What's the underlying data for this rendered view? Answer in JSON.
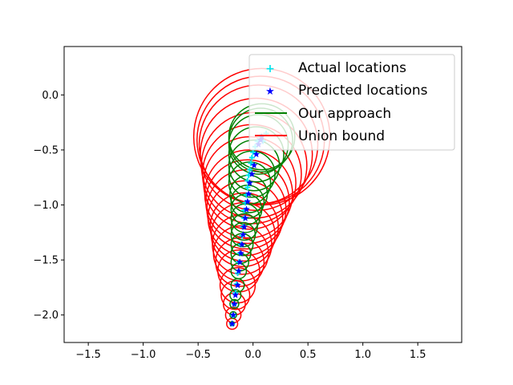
{
  "chart_data": {
    "type": "scatter",
    "title": "",
    "xlabel": "",
    "ylabel": "",
    "xlim": [
      -1.72,
      1.9
    ],
    "ylim": [
      -2.25,
      0.44
    ],
    "xticks": [
      -1.5,
      -1.0,
      -0.5,
      0.0,
      0.5,
      1.0,
      1.5
    ],
    "xtick_labels": [
      "−1.5",
      "−1.0",
      "−0.5",
      "0.0",
      "0.5",
      "1.0",
      "1.5"
    ],
    "yticks": [
      0.0,
      -0.5,
      -1.0,
      -1.5,
      -2.0
    ],
    "ytick_labels": [
      "0.0",
      "−0.5",
      "−1.0",
      "−1.5",
      "−2.0"
    ],
    "grid": false,
    "legend_position": "top-right",
    "series": [
      {
        "name": "Actual locations",
        "marker": "plus",
        "color": "#00e5ee",
        "x": [
          -0.19,
          -0.18,
          -0.17,
          -0.16,
          -0.15,
          -0.14,
          -0.13,
          -0.12,
          -0.11,
          -0.1,
          -0.09,
          -0.08,
          -0.08,
          -0.07,
          -0.06,
          -0.05,
          -0.05,
          -0.04,
          -0.03,
          -0.02,
          -0.01,
          0.0,
          0.02,
          0.04,
          0.07,
          0.09,
          0.12
        ],
        "y": [
          -2.08,
          -2.0,
          -1.9,
          -1.8,
          -1.72,
          -1.62,
          -1.52,
          -1.44,
          -1.36,
          -1.28,
          -1.2,
          -1.12,
          -1.05,
          -0.98,
          -0.91,
          -0.84,
          -0.78,
          -0.73,
          -0.68,
          -0.62,
          -0.57,
          -0.52,
          -0.47,
          -0.42,
          -0.38,
          -0.42,
          -0.35
        ]
      },
      {
        "name": "Predicted locations",
        "marker": "star",
        "color": "#0000ff",
        "x": [
          -0.19,
          -0.18,
          -0.17,
          -0.16,
          -0.14,
          -0.13,
          -0.12,
          -0.11,
          -0.1,
          -0.09,
          -0.08,
          -0.07,
          -0.06,
          -0.05,
          -0.04,
          -0.03,
          -0.01,
          0.01,
          0.03,
          0.05,
          0.07,
          0.08
        ],
        "y": [
          -2.08,
          -2.0,
          -1.9,
          -1.82,
          -1.73,
          -1.6,
          -1.52,
          -1.44,
          -1.36,
          -1.27,
          -1.2,
          -1.12,
          -1.04,
          -0.97,
          -0.9,
          -0.8,
          -0.72,
          -0.64,
          -0.54,
          -0.45,
          -0.41,
          -0.38
        ]
      },
      {
        "name": "Our approach",
        "type": "circles",
        "color": "#008000",
        "centers_x": [
          -0.19,
          -0.18,
          -0.17,
          -0.16,
          -0.14,
          -0.13,
          -0.12,
          -0.11,
          -0.1,
          -0.09,
          -0.08,
          -0.07,
          -0.06,
          -0.05,
          -0.04,
          -0.03,
          -0.01,
          0.01,
          0.03,
          0.05,
          0.07,
          0.08
        ],
        "centers_y": [
          -2.08,
          -2.0,
          -1.9,
          -1.82,
          -1.73,
          -1.6,
          -1.52,
          -1.44,
          -1.36,
          -1.27,
          -1.2,
          -1.12,
          -1.04,
          -0.97,
          -0.9,
          -0.8,
          -0.72,
          -0.64,
          -0.54,
          -0.45,
          -0.41,
          -0.38
        ],
        "radii": [
          0.02,
          0.03,
          0.04,
          0.05,
          0.06,
          0.07,
          0.08,
          0.09,
          0.1,
          0.11,
          0.12,
          0.13,
          0.14,
          0.15,
          0.17,
          0.19,
          0.21,
          0.23,
          0.25,
          0.27,
          0.29,
          0.3
        ]
      },
      {
        "name": "Union bound",
        "type": "circles",
        "color": "#ff0000",
        "centers_x": [
          -0.19,
          -0.18,
          -0.17,
          -0.16,
          -0.14,
          -0.13,
          -0.12,
          -0.11,
          -0.1,
          -0.09,
          -0.08,
          -0.07,
          -0.06,
          -0.05,
          -0.04,
          -0.03,
          -0.01,
          0.01,
          0.03,
          0.05,
          0.07,
          0.08
        ],
        "centers_y": [
          -2.08,
          -2.0,
          -1.9,
          -1.82,
          -1.73,
          -1.6,
          -1.52,
          -1.44,
          -1.36,
          -1.27,
          -1.2,
          -1.12,
          -1.04,
          -0.97,
          -0.9,
          -0.8,
          -0.72,
          -0.64,
          -0.54,
          -0.45,
          -0.41,
          -0.38
        ],
        "radii": [
          0.05,
          0.07,
          0.1,
          0.13,
          0.16,
          0.19,
          0.22,
          0.25,
          0.27,
          0.29,
          0.31,
          0.34,
          0.36,
          0.38,
          0.4,
          0.42,
          0.45,
          0.48,
          0.51,
          0.54,
          0.58,
          0.62
        ]
      }
    ]
  }
}
